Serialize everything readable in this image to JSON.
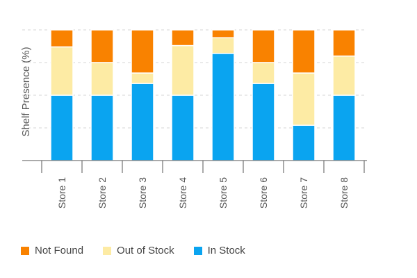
{
  "chart_data": {
    "type": "bar",
    "stacked": true,
    "title": "",
    "xlabel": "",
    "ylabel": "Shelf Presence (%)",
    "ylim": [
      0,
      100
    ],
    "y_tick_labels_shown": false,
    "grid": true,
    "legend_position": "bottom",
    "categories": [
      "Store 1",
      "Store 2",
      "Store 3",
      "Store 4",
      "Store 5",
      "Store 6",
      "Store 7",
      "Store 8"
    ],
    "series": [
      {
        "name": "In Stock",
        "color": "#0aa4f0",
        "values": [
          50,
          50,
          59,
          50,
          82,
          59,
          27,
          50
        ]
      },
      {
        "name": "Out of Stock",
        "color": "#fdeba4",
        "values": [
          37,
          25,
          8,
          38,
          12,
          16,
          40,
          30
        ]
      },
      {
        "name": "Not Found",
        "color": "#f98200",
        "values": [
          13,
          25,
          33,
          12,
          6,
          25,
          33,
          20
        ]
      }
    ],
    "legend_order": [
      "Not Found",
      "Out of Stock",
      "In Stock"
    ]
  }
}
